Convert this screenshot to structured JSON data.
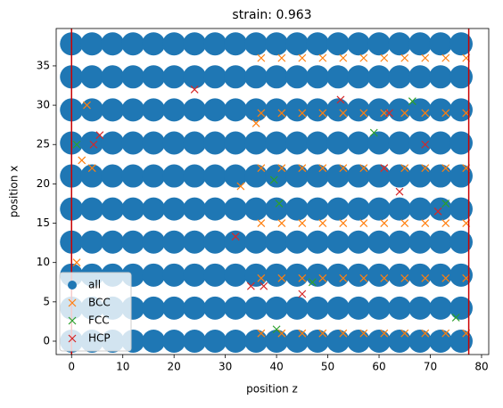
{
  "chart_data": {
    "type": "scatter",
    "title": "strain: 0.963",
    "xlabel": "position z",
    "ylabel": "position x",
    "xlim": [
      -3,
      81.4
    ],
    "ylim": [
      -1.7,
      39.75
    ],
    "xticks": [
      0,
      10,
      20,
      30,
      40,
      50,
      60,
      70,
      80
    ],
    "yticks": [
      0,
      5,
      10,
      15,
      20,
      25,
      30,
      35
    ],
    "legend": "lower left",
    "vlines": [
      0,
      77.5
    ],
    "vline_color": "#cc0000",
    "series": [
      {
        "name": "all",
        "color": "#1f77b4",
        "marker": "o",
        "x": [
          0,
          4,
          8,
          12,
          16,
          20,
          24,
          28,
          32,
          36,
          40,
          44,
          48,
          52,
          56,
          60,
          64,
          68,
          72,
          76,
          0,
          4,
          8,
          12,
          16,
          20,
          24,
          28,
          32,
          36,
          40,
          44,
          48,
          52,
          56,
          60,
          64,
          68,
          72,
          76,
          0,
          4,
          8,
          12,
          16,
          20,
          24,
          28,
          32,
          36,
          40,
          44,
          48,
          52,
          56,
          60,
          64,
          68,
          72,
          76,
          0,
          4,
          8,
          12,
          16,
          20,
          24,
          28,
          32,
          36,
          40,
          44,
          48,
          52,
          56,
          60,
          64,
          68,
          72,
          76,
          0,
          4,
          8,
          12,
          16,
          20,
          24,
          28,
          32,
          36,
          40,
          44,
          48,
          52,
          56,
          60,
          64,
          68,
          72,
          76,
          0,
          4,
          8,
          12,
          16,
          20,
          24,
          28,
          32,
          36,
          40,
          44,
          48,
          52,
          56,
          60,
          64,
          68,
          72,
          76,
          0,
          4,
          8,
          12,
          16,
          20,
          24,
          28,
          32,
          36,
          40,
          44,
          48,
          52,
          56,
          60,
          64,
          68,
          72,
          76,
          0,
          4,
          8,
          12,
          16,
          20,
          24,
          28,
          32,
          36,
          40,
          44,
          48,
          52,
          56,
          60,
          64,
          68,
          72,
          76,
          0,
          4,
          8,
          12,
          16,
          20,
          24,
          28,
          32,
          36,
          40,
          44,
          48,
          52,
          56,
          60,
          64,
          68,
          72,
          76,
          0,
          4,
          8,
          12,
          16,
          20,
          24,
          28,
          32,
          36,
          40,
          44,
          48,
          52,
          56,
          60,
          64,
          68,
          72,
          76
        ],
        "values": [
          0,
          0,
          0,
          0,
          0,
          0,
          0,
          0,
          0,
          0,
          0,
          0,
          0,
          0,
          0,
          0,
          0,
          0,
          0,
          0,
          4.2,
          4.2,
          4.2,
          4.2,
          4.2,
          4.2,
          4.2,
          4.2,
          4.2,
          4.2,
          4.2,
          4.2,
          4.2,
          4.2,
          4.2,
          4.2,
          4.2,
          4.2,
          4.2,
          4.2,
          8.4,
          8.4,
          8.4,
          8.4,
          8.4,
          8.4,
          8.4,
          8.4,
          8.4,
          8.4,
          8.4,
          8.4,
          8.4,
          8.4,
          8.4,
          8.4,
          8.4,
          8.4,
          8.4,
          8.4,
          12.6,
          12.6,
          12.6,
          12.6,
          12.6,
          12.6,
          12.6,
          12.6,
          12.6,
          12.6,
          12.6,
          12.6,
          12.6,
          12.6,
          12.6,
          12.6,
          12.6,
          12.6,
          12.6,
          12.6,
          16.8,
          16.8,
          16.8,
          16.8,
          16.8,
          16.8,
          16.8,
          16.8,
          16.8,
          16.8,
          16.8,
          16.8,
          16.8,
          16.8,
          16.8,
          16.8,
          16.8,
          16.8,
          16.8,
          16.8,
          21,
          21,
          21,
          21,
          21,
          21,
          21,
          21,
          21,
          21,
          21,
          21,
          21,
          21,
          21,
          21,
          21,
          21,
          21,
          21,
          25.2,
          25.2,
          25.2,
          25.2,
          25.2,
          25.2,
          25.2,
          25.2,
          25.2,
          25.2,
          25.2,
          25.2,
          25.2,
          25.2,
          25.2,
          25.2,
          25.2,
          25.2,
          25.2,
          25.2,
          29.4,
          29.4,
          29.4,
          29.4,
          29.4,
          29.4,
          29.4,
          29.4,
          29.4,
          29.4,
          29.4,
          29.4,
          29.4,
          29.4,
          29.4,
          29.4,
          29.4,
          29.4,
          29.4,
          29.4,
          33.6,
          33.6,
          33.6,
          33.6,
          33.6,
          33.6,
          33.6,
          33.6,
          33.6,
          33.6,
          33.6,
          33.6,
          33.6,
          33.6,
          33.6,
          33.6,
          33.6,
          33.6,
          33.6,
          33.6,
          37.8,
          37.8,
          37.8,
          37.8,
          37.8,
          37.8,
          37.8,
          37.8,
          37.8,
          37.8,
          37.8,
          37.8,
          37.8,
          37.8,
          37.8,
          37.8,
          37.8,
          37.8,
          37.8,
          37.8
        ]
      },
      {
        "name": "BCC",
        "color": "#ff7f0e",
        "marker": "x",
        "x": [
          37,
          41,
          45,
          49,
          53,
          57,
          61,
          65,
          69,
          73,
          77,
          37,
          41,
          45,
          49,
          53,
          57,
          61,
          65,
          69,
          73,
          77,
          37,
          41,
          45,
          49,
          53,
          57,
          61,
          65,
          69,
          73,
          77,
          37,
          41,
          45,
          49,
          53,
          57,
          61,
          65,
          69,
          73,
          77,
          37,
          41,
          45,
          49,
          53,
          57,
          61,
          65,
          69,
          73,
          77,
          37,
          41,
          45,
          49,
          53,
          57,
          61,
          65,
          69,
          73,
          77,
          1,
          3,
          2,
          33,
          36,
          4
        ],
        "values": [
          1,
          1,
          1,
          1,
          1,
          1,
          1,
          1,
          1,
          1,
          1,
          8,
          8,
          8,
          8,
          8,
          8,
          8,
          8,
          8,
          8,
          8,
          15,
          15,
          15,
          15,
          15,
          15,
          15,
          15,
          15,
          15,
          15,
          22,
          22,
          22,
          22,
          22,
          22,
          22,
          22,
          22,
          22,
          22,
          29,
          29,
          29,
          29,
          29,
          29,
          29,
          29,
          29,
          29,
          29,
          36,
          36,
          36,
          36,
          36,
          36,
          36,
          36,
          36,
          36,
          36,
          10,
          30,
          23,
          19.7,
          27.7,
          22
        ]
      },
      {
        "name": "FCC",
        "color": "#2ca02c",
        "marker": "x",
        "x": [
          1,
          39.5,
          40.5,
          40,
          59,
          66.5,
          73,
          75,
          47
        ],
        "values": [
          25,
          20.5,
          17.5,
          1.5,
          26.5,
          30.5,
          17.5,
          3,
          7.5
        ]
      },
      {
        "name": "HCP",
        "color": "#d62728",
        "marker": "x",
        "x": [
          24,
          32,
          5.5,
          4.3,
          35,
          37.5,
          45,
          52.5,
          62,
          64,
          69,
          71.5,
          61
        ],
        "values": [
          32,
          13.3,
          26.2,
          25,
          7,
          7,
          6,
          30.7,
          29,
          19,
          25,
          16.5,
          22
        ]
      }
    ]
  }
}
